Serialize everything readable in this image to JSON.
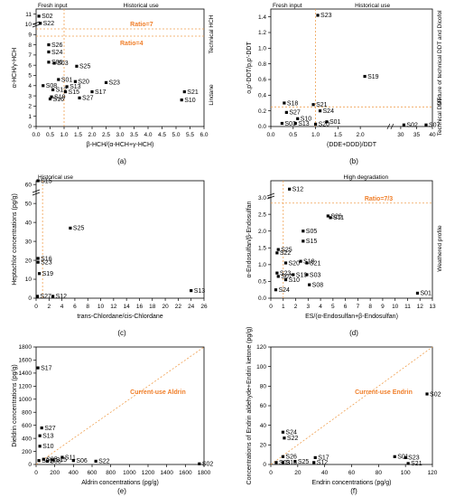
{
  "figure": {
    "accent_color": "#f07f2a"
  },
  "chart_data": [
    {
      "id": "a",
      "type": "scatter",
      "panel_label": "(a)",
      "xlabel": "β-HCH/(α-HCH+γ-HCH)",
      "ylabel": "α-HCH/γ-HCH",
      "xlim": [
        0,
        6
      ],
      "ylim": [
        0,
        11.5
      ],
      "xticks": [
        "0.0",
        "0.5",
        "1.0",
        "1.5",
        "2.0",
        "2.5",
        "3.0",
        "3.5",
        "4.0",
        "4.5",
        "5.0",
        "5.5",
        "6.0"
      ],
      "yticks": [
        "0",
        "1",
        "2",
        "3",
        "4",
        "5",
        "6",
        "7",
        "8",
        "9",
        "10",
        "11"
      ],
      "region_top_left": "Fresh input",
      "region_top_right": "Historical use",
      "right_labels": [
        "Technical HCH",
        "Lindane"
      ],
      "annotations": [
        "Ratio=7",
        "Ratio=4"
      ],
      "points": [
        {
          "name": "S02",
          "x": 0.1,
          "y": 10.8
        },
        {
          "name": "S22",
          "x": 0.15,
          "y": 10.1
        },
        {
          "name": "S26",
          "x": 0.45,
          "y": 8.0
        },
        {
          "name": "S24",
          "x": 0.45,
          "y": 7.3
        },
        {
          "name": "S06",
          "x": 0.45,
          "y": 6.3
        },
        {
          "name": "S03",
          "x": 0.65,
          "y": 6.2
        },
        {
          "name": "S25",
          "x": 1.45,
          "y": 5.9
        },
        {
          "name": "S01",
          "x": 0.8,
          "y": 4.6
        },
        {
          "name": "S20",
          "x": 1.4,
          "y": 4.4
        },
        {
          "name": "S23",
          "x": 2.5,
          "y": 4.3
        },
        {
          "name": "S08",
          "x": 0.25,
          "y": 4.0
        },
        {
          "name": "S13",
          "x": 1.1,
          "y": 3.9
        },
        {
          "name": "S17",
          "x": 2.0,
          "y": 3.4
        },
        {
          "name": "S21",
          "x": 5.3,
          "y": 3.4
        },
        {
          "name": "S12",
          "x": 0.6,
          "y": 3.6
        },
        {
          "name": "S15",
          "x": 1.05,
          "y": 3.4
        },
        {
          "name": "S27",
          "x": 1.55,
          "y": 2.8
        },
        {
          "name": "S10",
          "x": 5.2,
          "y": 2.6
        },
        {
          "name": "S19",
          "x": 0.55,
          "y": 2.9
        },
        {
          "name": "S16",
          "x": 0.5,
          "y": 2.7
        }
      ]
    },
    {
      "id": "b",
      "type": "scatter",
      "panel_label": "(b)",
      "xlabel": "(DDE+DDD)/DDT",
      "ylabel": "o,p'-DDT/p,p'-DDT",
      "xlim": [
        0,
        40
      ],
      "ylim": [
        0,
        1.5
      ],
      "xticks": [
        "0.0",
        "0.5",
        "1.0",
        "1.5",
        "2.0",
        "30",
        "35",
        "40"
      ],
      "yticks": [
        "0.0",
        "0.2",
        "0.4",
        "0.6",
        "0.8",
        "1.0",
        "1.2",
        "1.4"
      ],
      "region_top_left": "Fresh input",
      "region_top_right": "Historical use",
      "right_labels": [
        "Mixture of technical DDT and Dicofol",
        "Technical DDT"
      ],
      "points": [
        {
          "name": "S23",
          "x": 1.05,
          "y": 1.42
        },
        {
          "name": "S19",
          "x": 2.1,
          "y": 0.64
        },
        {
          "name": "S18",
          "x": 0.3,
          "y": 0.3
        },
        {
          "name": "S21",
          "x": 0.95,
          "y": 0.28
        },
        {
          "name": "S24",
          "x": 1.1,
          "y": 0.2
        },
        {
          "name": "S27",
          "x": 0.35,
          "y": 0.18
        },
        {
          "name": "S10",
          "x": 0.6,
          "y": 0.1
        },
        {
          "name": "S01",
          "x": 1.25,
          "y": 0.06
        },
        {
          "name": "S02",
          "x": 31.0,
          "y": 0.02
        },
        {
          "name": "S07",
          "x": 38.0,
          "y": 0.02
        },
        {
          "name": "S03",
          "x": 0.25,
          "y": 0.04
        },
        {
          "name": "S13",
          "x": 0.55,
          "y": 0.04
        },
        {
          "name": "S20",
          "x": 1.0,
          "y": 0.03
        }
      ]
    },
    {
      "id": "c",
      "type": "scatter",
      "panel_label": "(c)",
      "xlabel": "trans-Chlordane/cis-Chlordane",
      "ylabel": "Heptachlor concentrations (pg/g)",
      "xlim": [
        0,
        26
      ],
      "ylim": [
        0,
        62
      ],
      "xticks": [
        "0",
        "2",
        "4",
        "6",
        "8",
        "10",
        "12",
        "14",
        "16",
        "18",
        "20",
        "22",
        "24",
        "26"
      ],
      "yticks": [
        "0",
        "10",
        "20",
        "30",
        "40",
        "50",
        "60"
      ],
      "region_top_left": "Historical use",
      "points": [
        {
          "name": "S15",
          "x": 0.3,
          "y": 62
        },
        {
          "name": "S25",
          "x": 5.3,
          "y": 37
        },
        {
          "name": "S16",
          "x": 0.3,
          "y": 21
        },
        {
          "name": "S23",
          "x": 0.3,
          "y": 19
        },
        {
          "name": "S19",
          "x": 0.5,
          "y": 13
        },
        {
          "name": "S27",
          "x": 0.2,
          "y": 1
        },
        {
          "name": "S12",
          "x": 2.6,
          "y": 1
        },
        {
          "name": "S13",
          "x": 24.0,
          "y": 4
        }
      ]
    },
    {
      "id": "d",
      "type": "scatter",
      "panel_label": "(d)",
      "xlabel": "ES/(α-Endosulfan+β-Endosulfan)",
      "ylabel": "α-Endosulfan/β-Endosulfan",
      "xlim": [
        0,
        13
      ],
      "ylim": [
        0,
        3.5
      ],
      "xticks": [
        "0",
        "1",
        "2",
        "3",
        "4",
        "5",
        "6",
        "7",
        "8",
        "9",
        "10",
        "11",
        "12",
        "13"
      ],
      "yticks": [
        "0.0",
        "0.5",
        "1.0",
        "1.5",
        "2.0",
        "2.5",
        "3.0"
      ],
      "region_top_right": "High degradation",
      "right_labels": [
        "Weathered profile"
      ],
      "annotations": [
        "Ratio=7/3"
      ],
      "points": [
        {
          "name": "S12",
          "x": 1.5,
          "y": 3.25
        },
        {
          "name": "S26",
          "x": 4.6,
          "y": 2.45
        },
        {
          "name": "S11",
          "x": 4.8,
          "y": 2.4
        },
        {
          "name": "S05",
          "x": 2.6,
          "y": 2.0
        },
        {
          "name": "S15",
          "x": 2.6,
          "y": 1.7
        },
        {
          "name": "S25",
          "x": 0.6,
          "y": 1.45
        },
        {
          "name": "S22",
          "x": 0.5,
          "y": 1.35
        },
        {
          "name": "S20",
          "x": 1.2,
          "y": 1.05
        },
        {
          "name": "S18",
          "x": 2.4,
          "y": 1.1
        },
        {
          "name": "S21",
          "x": 2.9,
          "y": 1.05
        },
        {
          "name": "S23",
          "x": 0.5,
          "y": 0.75
        },
        {
          "name": "S07",
          "x": 0.6,
          "y": 0.65
        },
        {
          "name": "S19",
          "x": 1.8,
          "y": 0.7
        },
        {
          "name": "S03",
          "x": 2.9,
          "y": 0.7
        },
        {
          "name": "S10",
          "x": 1.2,
          "y": 0.55
        },
        {
          "name": "S08",
          "x": 3.1,
          "y": 0.4
        },
        {
          "name": "S24",
          "x": 0.4,
          "y": 0.25
        },
        {
          "name": "S01",
          "x": 11.8,
          "y": 0.15
        }
      ]
    },
    {
      "id": "e",
      "type": "scatter",
      "panel_label": "(e)",
      "xlabel": "Aldrin concentrations (pg/g)",
      "ylabel": "Dieldrin concentrations (pg/g)",
      "xlim": [
        0,
        1800
      ],
      "ylim": [
        0,
        1800
      ],
      "xticks": [
        "0",
        "200",
        "400",
        "600",
        "800",
        "1000",
        "1200",
        "1400",
        "1600",
        "1800"
      ],
      "yticks": [
        "0",
        "200",
        "400",
        "600",
        "800",
        "1000",
        "1200",
        "1400",
        "1600",
        "1800"
      ],
      "annotations": [
        "Current-use Aldrin"
      ],
      "points": [
        {
          "name": "S17",
          "x": 20,
          "y": 1480
        },
        {
          "name": "S27",
          "x": 60,
          "y": 560
        },
        {
          "name": "S13",
          "x": 40,
          "y": 440
        },
        {
          "name": "S10",
          "x": 40,
          "y": 280
        },
        {
          "name": "S11",
          "x": 280,
          "y": 110
        },
        {
          "name": "S06",
          "x": 400,
          "y": 60
        },
        {
          "name": "S22",
          "x": 640,
          "y": 50
        },
        {
          "name": "S02",
          "x": 1750,
          "y": 10
        },
        {
          "name": "S01",
          "x": 30,
          "y": 60
        },
        {
          "name": "S05",
          "x": 80,
          "y": 80
        },
        {
          "name": "S08",
          "x": 120,
          "y": 50
        },
        {
          "name": "S15",
          "x": 180,
          "y": 70
        }
      ]
    },
    {
      "id": "f",
      "type": "scatter",
      "panel_label": "(f)",
      "xlabel": "Endrin concentrations (pg/g)",
      "ylabel": "Concentrations of Endrin aldehyde+Endrin ketone (pg/g)",
      "xlim": [
        0,
        120
      ],
      "ylim": [
        0,
        120
      ],
      "xticks": [
        "0",
        "20",
        "40",
        "60",
        "80",
        "100",
        "120"
      ],
      "yticks": [
        "0",
        "20",
        "40",
        "60",
        "80",
        "100",
        "120"
      ],
      "annotations": [
        "Current-use Endrin"
      ],
      "points": [
        {
          "name": "S02",
          "x": 116,
          "y": 72
        },
        {
          "name": "S24",
          "x": 9,
          "y": 33
        },
        {
          "name": "S22",
          "x": 10,
          "y": 27
        },
        {
          "name": "S26",
          "x": 9,
          "y": 8
        },
        {
          "name": "S17",
          "x": 33,
          "y": 7
        },
        {
          "name": "S25",
          "x": 18,
          "y": 3
        },
        {
          "name": "S03",
          "x": 4,
          "y": 2
        },
        {
          "name": "S15",
          "x": 9,
          "y": 2
        },
        {
          "name": "S12",
          "x": 32,
          "y": 2
        },
        {
          "name": "S01",
          "x": 92,
          "y": 8
        },
        {
          "name": "S23",
          "x": 100,
          "y": 7
        },
        {
          "name": "S21",
          "x": 102,
          "y": 1
        }
      ]
    }
  ]
}
